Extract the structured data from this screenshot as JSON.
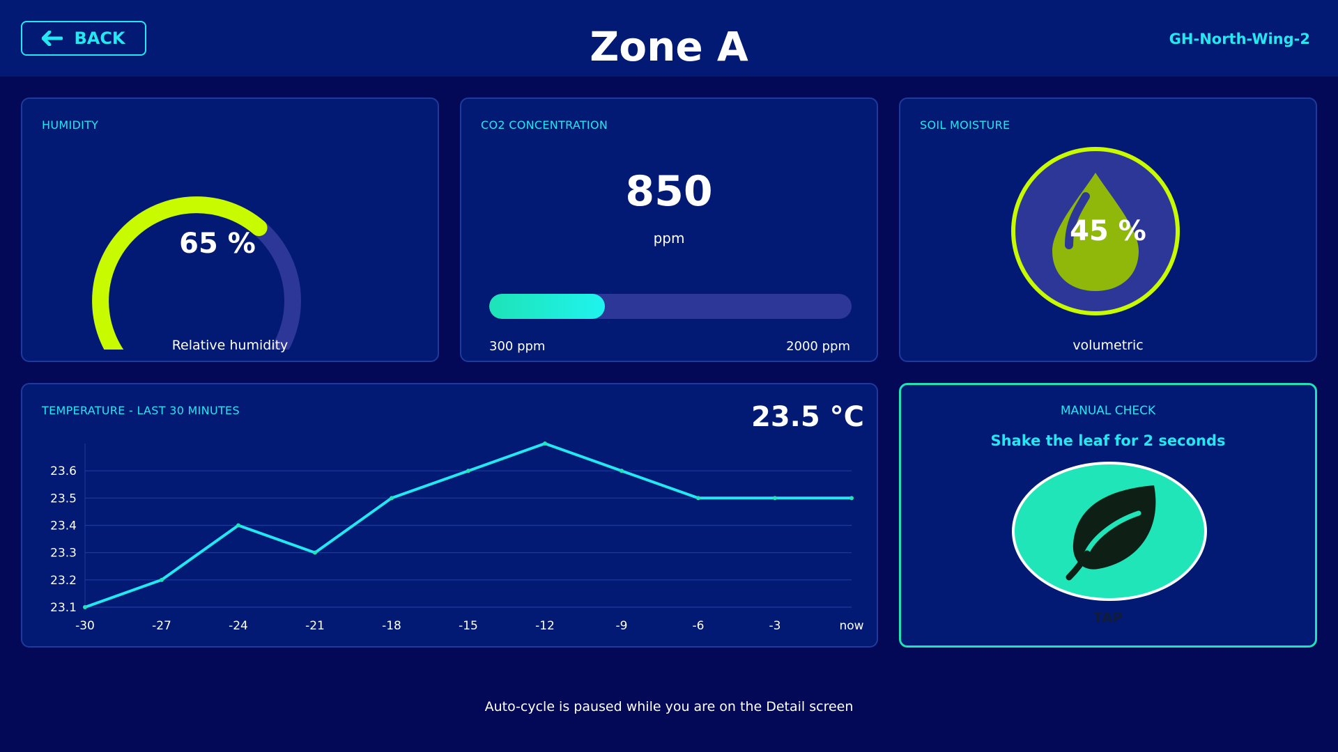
{
  "header": {
    "back_label": "BACK",
    "title": "Zone A",
    "zone_id": "GH-North-Wing-2"
  },
  "humidity": {
    "title": "HUMIDITY",
    "value": 65,
    "value_text": "65 %",
    "caption": "Relative humidity"
  },
  "co2": {
    "title": "CO2 CONCENTRATION",
    "value": 850,
    "value_text": "850",
    "unit": "ppm",
    "min": 300,
    "max": 2000,
    "min_label": "300 ppm",
    "max_label": "2000 ppm",
    "bar_fraction": 0.32
  },
  "soil": {
    "title": "SOIL MOISTURE",
    "value": 45,
    "value_text": "45 %",
    "caption": "volumetric"
  },
  "temperature": {
    "title": "TEMPERATURE - LAST 30 MINUTES",
    "current": "23.5 °C"
  },
  "manual": {
    "title": "MANUAL CHECK",
    "instruction": "Shake the leaf for 2 seconds",
    "tap_label": "TAP"
  },
  "footer": {
    "note": "Auto-cycle is paused while you are on the Detail screen"
  },
  "colors": {
    "accent": "#23e7f1",
    "lime": "#c8fa00",
    "mint": "#1fe5b8",
    "background": "#030957",
    "panel": "#021a73"
  },
  "icons": {
    "back": "arrow-left-icon",
    "drop": "water-drop-icon",
    "leaf": "leaf-icon"
  },
  "chart_data": {
    "type": "line",
    "title": "",
    "xlabel": "",
    "ylabel": "",
    "categories": [
      "-30",
      "-27",
      "-24",
      "-21",
      "-18",
      "-15",
      "-12",
      "-9",
      "-6",
      "-3",
      "now"
    ],
    "y_ticks": [
      "23.1",
      "23.2",
      "23.3",
      "23.4",
      "23.5",
      "23.6"
    ],
    "values": [
      23.1,
      23.2,
      23.4,
      23.3,
      23.5,
      23.6,
      23.7,
      23.6,
      23.5,
      23.5,
      23.5
    ],
    "ylim": [
      23.1,
      23.7
    ],
    "grid": true,
    "legend": "none",
    "color": "#23e7f1"
  }
}
